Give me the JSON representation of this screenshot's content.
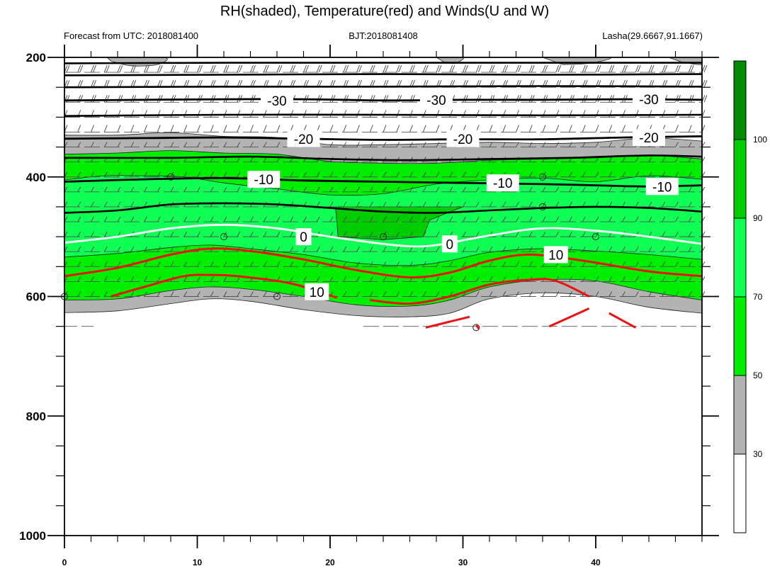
{
  "chart_data": {
    "type": "heatmap",
    "title": "RH(shaded), Temperature(red) and Winds(U and W)",
    "subtitle_left": "Forecast from UTC: 2018081400",
    "subtitle_center": "BJT:2018081408",
    "subtitle_right": "Lasha(29.6667,91.1667)",
    "x_range": [
      0,
      48
    ],
    "x_ticks": [
      0,
      10,
      20,
      30,
      40
    ],
    "y_range": [
      200,
      1000
    ],
    "y_ticks": [
      200,
      400,
      600,
      800,
      1000
    ],
    "y_reversed": true,
    "colorbar": {
      "levels": [
        30,
        50,
        70,
        90,
        100
      ],
      "labels": [
        "30",
        "50",
        "70",
        "90",
        "100"
      ],
      "colors": [
        "#ffffff",
        "#b3b3b3",
        "#00ee00",
        "#0fff55",
        "#00cd00",
        "#008b00"
      ]
    },
    "rh_contours": [
      {
        "level": 30,
        "color": "#b3b3b3",
        "top": [
          [
            0,
            330
          ],
          [
            4,
            330
          ],
          [
            8,
            326
          ],
          [
            12,
            332
          ],
          [
            16,
            334
          ],
          [
            20,
            346
          ],
          [
            24,
            346
          ],
          [
            28,
            344
          ],
          [
            32,
            342
          ],
          [
            36,
            344
          ],
          [
            40,
            342
          ],
          [
            44,
            335
          ],
          [
            48,
            340
          ]
        ],
        "bottom": [
          [
            0,
            627
          ],
          [
            4,
            624
          ],
          [
            8,
            612
          ],
          [
            11,
            604
          ],
          [
            14,
            608
          ],
          [
            18,
            622
          ],
          [
            22,
            632
          ],
          [
            26,
            634
          ],
          [
            29,
            628
          ],
          [
            32,
            604
          ],
          [
            36,
            594
          ],
          [
            40,
            600
          ],
          [
            44,
            618
          ],
          [
            48,
            628
          ]
        ]
      },
      {
        "level": 50,
        "color": "#00ee00",
        "top": [
          [
            0,
            362
          ],
          [
            4,
            360
          ],
          [
            8,
            356
          ],
          [
            12,
            360
          ],
          [
            16,
            362
          ],
          [
            20,
            374
          ],
          [
            24,
            377
          ],
          [
            28,
            377
          ],
          [
            32,
            372
          ],
          [
            36,
            370
          ],
          [
            40,
            368
          ],
          [
            44,
            364
          ],
          [
            48,
            370
          ]
        ],
        "bottom": [
          [
            0,
            606
          ],
          [
            4,
            604
          ],
          [
            8,
            590
          ],
          [
            11,
            584
          ],
          [
            14,
            588
          ],
          [
            18,
            600
          ],
          [
            22,
            614
          ],
          [
            26,
            616
          ],
          [
            29,
            606
          ],
          [
            32,
            584
          ],
          [
            36,
            572
          ],
          [
            40,
            574
          ],
          [
            44,
            592
          ],
          [
            48,
            606
          ]
        ]
      },
      {
        "level": 70,
        "color": "#0fff55",
        "top": [
          [
            0,
            405
          ],
          [
            3,
            398
          ],
          [
            6,
            398
          ],
          [
            9,
            400
          ],
          [
            12,
            410
          ],
          [
            16,
            420
          ],
          [
            20,
            430
          ],
          [
            24,
            428
          ],
          [
            28,
            412
          ],
          [
            32,
            405
          ],
          [
            36,
            402
          ],
          [
            40,
            408
          ],
          [
            44,
            398
          ],
          [
            48,
            404
          ]
        ],
        "bottom": [
          [
            0,
            534
          ],
          [
            4,
            528
          ],
          [
            8,
            518
          ],
          [
            11,
            514
          ],
          [
            14,
            520
          ],
          [
            18,
            530
          ],
          [
            22,
            544
          ],
          [
            26,
            548
          ],
          [
            29,
            540
          ],
          [
            32,
            526
          ],
          [
            36,
            520
          ],
          [
            40,
            524
          ],
          [
            44,
            530
          ],
          [
            48,
            538
          ]
        ]
      },
      {
        "level": 90,
        "color": "#00cd00",
        "top": [
          [
            20.4,
            450
          ],
          [
            25,
            450
          ],
          [
            28,
            450
          ],
          [
            30,
            450
          ]
        ],
        "bottom": [
          [
            30,
            450
          ],
          [
            27.5,
            472
          ],
          [
            27,
            500
          ],
          [
            24,
            505
          ],
          [
            20.6,
            500
          ]
        ]
      }
    ],
    "temperature_contours": [
      {
        "label": "-30",
        "points": [
          [
            0,
            272
          ],
          [
            6,
            271
          ],
          [
            12,
            270
          ],
          [
            18,
            270
          ],
          [
            24,
            272
          ],
          [
            30,
            271
          ],
          [
            36,
            271
          ],
          [
            42,
            270
          ],
          [
            48,
            271
          ]
        ]
      },
      {
        "label": "-20",
        "points": [
          [
            0,
            336
          ],
          [
            6,
            335
          ],
          [
            12,
            334
          ],
          [
            18,
            336
          ],
          [
            24,
            338
          ],
          [
            30,
            337
          ],
          [
            36,
            337
          ],
          [
            42,
            334
          ],
          [
            48,
            332
          ]
        ]
      },
      {
        "label": "-10",
        "points": [
          [
            0,
            408
          ],
          [
            6,
            404
          ],
          [
            12,
            402
          ],
          [
            18,
            406
          ],
          [
            24,
            408
          ],
          [
            30,
            410
          ],
          [
            36,
            412
          ],
          [
            40,
            414
          ],
          [
            44,
            416
          ],
          [
            48,
            414
          ]
        ]
      },
      {
        "label": "0",
        "points": [
          [
            0,
            510
          ],
          [
            4,
            500
          ],
          [
            8,
            486
          ],
          [
            12,
            480
          ],
          [
            16,
            486
          ],
          [
            20,
            500
          ],
          [
            24,
            512
          ],
          [
            26,
            516
          ],
          [
            28,
            514
          ],
          [
            32,
            498
          ],
          [
            36,
            486
          ],
          [
            40,
            490
          ],
          [
            44,
            500
          ],
          [
            48,
            512
          ]
        ]
      },
      {
        "label": "10",
        "points": [
          [
            0,
            566
          ],
          [
            4,
            552
          ],
          [
            8,
            530
          ],
          [
            11,
            520
          ],
          [
            14,
            524
          ],
          [
            18,
            538
          ],
          [
            22,
            556
          ],
          [
            26,
            568
          ],
          [
            29,
            560
          ],
          [
            32,
            540
          ],
          [
            35,
            530
          ],
          [
            39,
            540
          ],
          [
            44,
            558
          ],
          [
            48,
            566
          ]
        ]
      },
      {
        "label": "10",
        "points": [
          [
            3.5,
            600
          ],
          [
            6,
            584
          ],
          [
            9,
            566
          ],
          [
            11,
            564
          ],
          [
            13,
            566
          ],
          [
            17,
            578
          ],
          [
            20.5,
            602
          ]
        ]
      },
      {
        "label": "10",
        "points": [
          [
            23,
            606
          ],
          [
            26,
            612
          ],
          [
            29,
            600
          ],
          [
            32,
            580
          ],
          [
            35,
            572
          ],
          [
            37,
            574
          ],
          [
            39.5,
            600
          ]
        ]
      }
    ]
  }
}
